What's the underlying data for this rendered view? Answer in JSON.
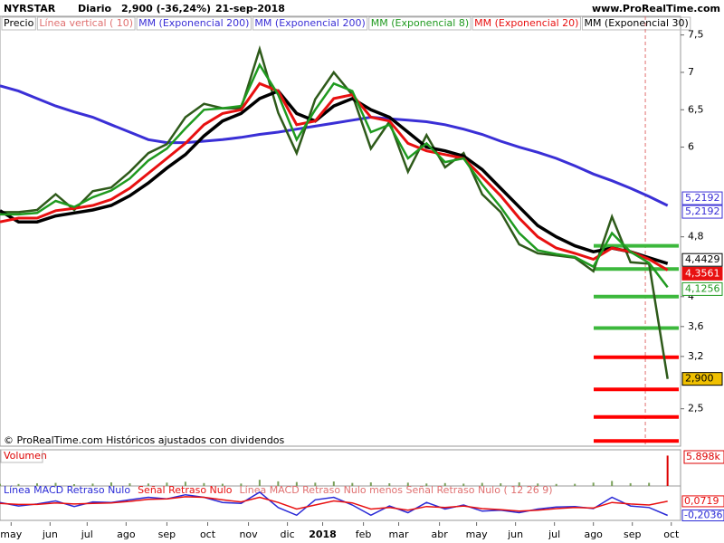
{
  "header": {
    "symbol": "NYRSTAR",
    "period": "Diario",
    "last": "2,900 (-36,24%)",
    "date": "21-sep-2018",
    "site": "www.ProRealTime.com"
  },
  "legend_entries": [
    {
      "text": "Precio",
      "color": "#000000"
    },
    {
      "text": "Línea vertical ( 10)",
      "color": "#e07070"
    },
    {
      "text": "MM (Exponencial 200)",
      "color": "#3a2fd6"
    },
    {
      "text": "MM (Exponencial 200)",
      "color": "#3a2fd6"
    },
    {
      "text": "MM (Exponencial 8)",
      "color": "#1f9a1f"
    },
    {
      "text": "MM (Exponencial 20)",
      "color": "#e81010"
    },
    {
      "text": "MM (Exponencial 30)",
      "color": "#000000"
    }
  ],
  "footer": "© ProRealTime.com Históricos ajustados con dividendos",
  "chart_data": [
    {
      "type": "line",
      "x": [
        0,
        10,
        20,
        30,
        40,
        50,
        60,
        70,
        80,
        90,
        100,
        110,
        120,
        130,
        140,
        150,
        160,
        170,
        180,
        190,
        200,
        210,
        220,
        230,
        240,
        250,
        260,
        270,
        280,
        290,
        300,
        310,
        320,
        330,
        340,
        350,
        360
      ],
      "xlim": [
        0,
        367
      ],
      "xticks": [
        {
          "value": 6,
          "label": "may"
        },
        {
          "value": 27,
          "label": "jun"
        },
        {
          "value": 47,
          "label": "jul"
        },
        {
          "value": 68,
          "label": "ago"
        },
        {
          "value": 90,
          "label": "sep"
        },
        {
          "value": 112,
          "label": "oct"
        },
        {
          "value": 134,
          "label": "nov"
        },
        {
          "value": 155,
          "label": "dic"
        },
        {
          "value": 174,
          "label": "2018"
        },
        {
          "value": 196,
          "label": "feb"
        },
        {
          "value": 215,
          "label": "mar"
        },
        {
          "value": 237,
          "label": "abr"
        },
        {
          "value": 257,
          "label": "may"
        },
        {
          "value": 278,
          "label": "jun"
        },
        {
          "value": 299,
          "label": "jul"
        },
        {
          "value": 320,
          "label": "ago"
        },
        {
          "value": 341,
          "label": "sep"
        },
        {
          "value": 362,
          "label": "oct"
        }
      ],
      "ylim": [
        2,
        7.75
      ],
      "yticks": [
        {
          "value": 7.5,
          "label": "7,5"
        },
        7,
        {
          "value": 6.5,
          "label": "6,5"
        },
        6,
        {
          "value": 4.8,
          "label": "4,8"
        },
        4,
        {
          "value": 3.6,
          "label": "3,6"
        },
        {
          "value": 3.2,
          "label": "3,2"
        },
        {
          "value": 2.5,
          "label": "2,5"
        }
      ],
      "vline_x": 348,
      "levels": [
        {
          "value": 4.68,
          "color": "#3cb83c"
        },
        {
          "value": 4.37,
          "color": "#3cb83c"
        },
        {
          "value": 4.0,
          "color": "#3cb83c"
        },
        {
          "value": 3.58,
          "color": "#3cb83c"
        },
        {
          "value": 3.19,
          "color": "#ff0000"
        },
        {
          "value": 2.76,
          "color": "#ff0000"
        },
        {
          "value": 2.39,
          "color": "#ff0000"
        },
        {
          "value": 2.07,
          "color": "#ff0000"
        }
      ],
      "series": [
        {
          "name": "Precio",
          "color": "#2e5a1a",
          "last_label": "2,900",
          "values": [
            5.13,
            5.13,
            5.16,
            5.37,
            5.16,
            5.41,
            5.46,
            5.67,
            5.92,
            6.04,
            6.4,
            6.58,
            6.52,
            6.52,
            7.31,
            6.46,
            5.92,
            6.64,
            7.0,
            6.7,
            5.98,
            6.34,
            5.67,
            6.16,
            5.73,
            5.92,
            5.37,
            5.13,
            4.7,
            4.58,
            4.55,
            4.52,
            4.34,
            5.07,
            4.46,
            4.44,
            2.9
          ]
        },
        {
          "name": "MM (Exponencial 200)",
          "color": "#3a2fd6",
          "last_label": "5,2192",
          "values": [
            6.82,
            6.75,
            6.65,
            6.55,
            6.47,
            6.4,
            6.3,
            6.2,
            6.1,
            6.06,
            6.06,
            6.08,
            6.1,
            6.13,
            6.17,
            6.2,
            6.24,
            6.28,
            6.32,
            6.36,
            6.4,
            6.38,
            6.36,
            6.34,
            6.3,
            6.24,
            6.17,
            6.08,
            6.0,
            5.93,
            5.85,
            5.75,
            5.64,
            5.55,
            5.45,
            5.34,
            5.2192
          ]
        },
        {
          "name": "MM (Exponencial 8)",
          "color": "#1f9a1f",
          "last_label": "4,1256",
          "values": [
            5.1,
            5.1,
            5.12,
            5.28,
            5.2,
            5.33,
            5.42,
            5.58,
            5.82,
            5.98,
            6.25,
            6.5,
            6.52,
            6.55,
            7.1,
            6.7,
            6.1,
            6.5,
            6.85,
            6.75,
            6.2,
            6.3,
            5.85,
            6.05,
            5.8,
            5.85,
            5.5,
            5.2,
            4.85,
            4.62,
            4.57,
            4.53,
            4.4,
            4.85,
            4.6,
            4.45,
            4.1256
          ]
        },
        {
          "name": "MM (Exponencial 20)",
          "color": "#e81010",
          "last_label": "4,3561",
          "values": [
            5.0,
            5.05,
            5.05,
            5.15,
            5.18,
            5.22,
            5.3,
            5.45,
            5.65,
            5.85,
            6.05,
            6.3,
            6.45,
            6.5,
            6.85,
            6.75,
            6.3,
            6.35,
            6.65,
            6.7,
            6.4,
            6.35,
            6.05,
            5.95,
            5.9,
            5.85,
            5.6,
            5.35,
            5.05,
            4.8,
            4.65,
            4.58,
            4.5,
            4.65,
            4.6,
            4.5,
            4.3561
          ]
        },
        {
          "name": "MM (Exponencial 30)",
          "color": "#000000",
          "last_label": "4,4429",
          "values": [
            5.15,
            5.0,
            5.0,
            5.08,
            5.12,
            5.16,
            5.22,
            5.35,
            5.52,
            5.72,
            5.9,
            6.15,
            6.35,
            6.45,
            6.65,
            6.75,
            6.45,
            6.35,
            6.55,
            6.65,
            6.5,
            6.4,
            6.2,
            6.0,
            5.95,
            5.88,
            5.7,
            5.45,
            5.2,
            4.95,
            4.8,
            4.68,
            4.6,
            4.65,
            4.6,
            4.52,
            4.4429
          ]
        }
      ]
    },
    {
      "type": "bar",
      "title": "Volumen",
      "color": "#7aa05a",
      "ylim": [
        0,
        6500
      ],
      "last_label": "5.898k",
      "values": [
        420,
        380,
        510,
        600,
        350,
        460,
        700,
        520,
        480,
        650,
        820,
        560,
        430,
        470,
        1200,
        900,
        760,
        640,
        880,
        590,
        700,
        520,
        640,
        480,
        560,
        450,
        600,
        520,
        700,
        480,
        390,
        420,
        650,
        980,
        540,
        610,
        5898
      ]
    },
    {
      "type": "line",
      "ylim": [
        -0.3,
        0.3
      ],
      "series": [
        {
          "name": "Línea MACD Retraso Nulo",
          "color": "#2a2ad6",
          "last_label": "-0,2036",
          "values": [
            0.05,
            -0.02,
            0.02,
            0.08,
            -0.03,
            0.06,
            0.05,
            0.1,
            0.15,
            0.12,
            0.2,
            0.15,
            0.05,
            0.03,
            0.25,
            -0.05,
            -0.2,
            0.1,
            0.15,
            0.0,
            -0.2,
            -0.02,
            -0.15,
            0.05,
            -0.08,
            0.0,
            -0.12,
            -0.1,
            -0.15,
            -0.08,
            -0.04,
            -0.03,
            -0.07,
            0.15,
            -0.02,
            -0.05,
            -0.2036
          ]
        },
        {
          "name": "Señal Retraso Nulo",
          "color": "#e81010",
          "last_label": "0,0719",
          "values": [
            0.03,
            0.01,
            0.01,
            0.04,
            0.02,
            0.03,
            0.04,
            0.07,
            0.11,
            0.12,
            0.16,
            0.15,
            0.1,
            0.06,
            0.15,
            0.05,
            -0.08,
            0.0,
            0.08,
            0.04,
            -0.08,
            -0.05,
            -0.1,
            -0.03,
            -0.05,
            -0.02,
            -0.07,
            -0.09,
            -0.12,
            -0.1,
            -0.07,
            -0.05,
            -0.06,
            0.05,
            0.02,
            0.0,
            0.0719
          ]
        }
      ],
      "extra_legend": {
        "text": "Línea MACD Retraso Nulo menos Señal Retraso Nulo ( 12 26 9)",
        "color": "#e07070"
      }
    }
  ]
}
